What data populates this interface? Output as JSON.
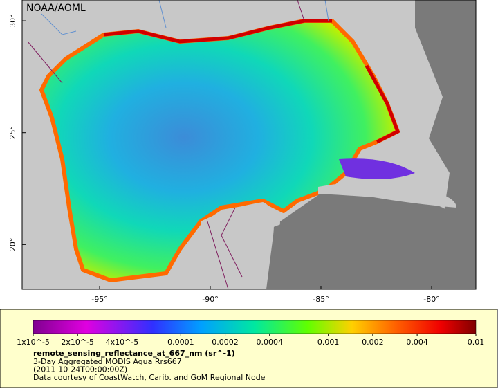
{
  "map": {
    "credit": "NOAA/AOML",
    "lonlim": [
      -98.5,
      -78
    ],
    "latlim": [
      18,
      30.93
    ],
    "lon_ticks": [
      {
        "value": -95,
        "label": "-95°"
      },
      {
        "value": -90,
        "label": "-90°"
      },
      {
        "value": -85,
        "label": "-85°"
      },
      {
        "value": -80,
        "label": "-80°"
      }
    ],
    "lat_ticks": [
      {
        "value": 30,
        "label": "30°"
      },
      {
        "value": 25,
        "label": "25°"
      },
      {
        "value": 20,
        "label": "20°"
      }
    ]
  },
  "colorbar": {
    "scale": "log",
    "range": [
      1e-05,
      0.01
    ],
    "ticks": [
      {
        "value": 1e-05,
        "label": "1x10^-5"
      },
      {
        "value": 2e-05,
        "label": "2x10^-5"
      },
      {
        "value": 4e-05,
        "label": "4x10^-5"
      },
      0.0001,
      0.0002,
      0.0004,
      0.001,
      0.002,
      0.004,
      0.01
    ],
    "title": "remote_sensing_reflectance_at_667_nm (sr^-1)",
    "lines": [
      "3-Day Aggregated MODIS Aqua Rrs667",
      "(2011-10-24T00:00:00Z)",
      "Data courtesy of CoastWatch, Carib. and GoM Regional Node"
    ]
  }
}
